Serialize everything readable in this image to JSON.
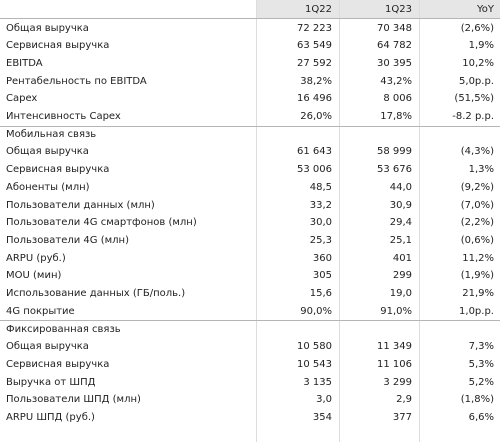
{
  "table": {
    "header": [
      "1Q22",
      "1Q23",
      "YoY"
    ],
    "sections": [
      {
        "rows": [
          [
            "Общая выручка",
            "72 223",
            "70 348",
            "(2,6%)"
          ],
          [
            "Сервисная выручка",
            "63 549",
            "64 782",
            "1,9%"
          ],
          [
            "EBITDA",
            "27 592",
            "30 395",
            "10,2%"
          ],
          [
            "Рентабельность по EBITDA",
            "38,2%",
            "43,2%",
            "5,0p.p."
          ],
          [
            "Capex",
            "16 496",
            "8 006",
            "(51,5%)"
          ],
          [
            "Интенсивность Capex",
            "26,0%",
            "17,8%",
            "-8.2 p.p."
          ]
        ]
      },
      {
        "title": "Мобильная связь",
        "rows": [
          [
            "Общая выручка",
            "61 643",
            "58 999",
            "(4,3%)"
          ],
          [
            "Сервисная выручка",
            "53 006",
            "53 676",
            "1,3%"
          ],
          [
            "Абоненты (млн)",
            "48,5",
            "44,0",
            "(9,2%)"
          ],
          [
            "Пользователи данных (млн)",
            "33,2",
            "30,9",
            "(7,0%)"
          ],
          [
            "Пользователи 4G смартфонов (млн)",
            "30,0",
            "29,4",
            "(2,2%)"
          ],
          [
            "Пользователи 4G (млн)",
            "25,3",
            "25,1",
            "(0,6%)"
          ],
          [
            "ARPU (руб.)",
            "360",
            "401",
            "11,2%"
          ],
          [
            "MOU (мин)",
            "305",
            "299",
            "(1,9%)"
          ],
          [
            "Использование данных (ГБ/поль.)",
            "15,6",
            "19,0",
            "21,9%"
          ],
          [
            "4G покрытие",
            "90,0%",
            "91,0%",
            "1,0p.p."
          ]
        ]
      },
      {
        "title": "Фиксированная связь",
        "rows": [
          [
            "Общая выручка",
            "10 580",
            "11 349",
            "7,3%"
          ],
          [
            "Сервисная выручка",
            "10 543",
            "11 106",
            "5,3%"
          ],
          [
            "Выручка от ШПД",
            "3 135",
            "3 299",
            "5,2%"
          ],
          [
            "Пользователи ШПД (млн)",
            "3,0",
            "2,9",
            "(1,8%)"
          ],
          [
            "ARPU ШПД (руб.)",
            "354",
            "377",
            "6,6%"
          ]
        ]
      }
    ]
  }
}
